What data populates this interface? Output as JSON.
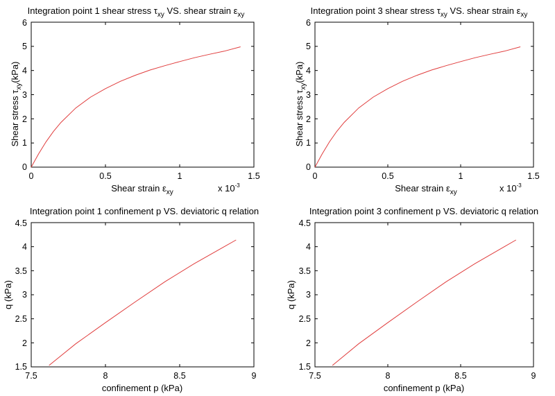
{
  "chart_data": [
    {
      "type": "line",
      "title": "Integration point 1 shear stress τxy VS. shear strain εxy",
      "title_parts": {
        "pre": "Integration point 1 shear stress ",
        "sym1": "τ",
        "sub1": "xy",
        "mid": " VS. shear strain ",
        "sym2": "ε",
        "sub2": "xy"
      },
      "xlabel": "Shear strain εxy",
      "xlabel_parts": {
        "pre": "Shear strain ",
        "sym": "ε",
        "sub": "xy"
      },
      "ylabel": "Shear stress τxy (kPa)",
      "ylabel_parts": {
        "pre": "Shear stress ",
        "sym": "τ",
        "sub": "xy",
        "post": "(kPa)"
      },
      "x_exponent_label": {
        "base": "x 10",
        "exp": "-3"
      },
      "xlim": [
        0,
        1.5
      ],
      "ylim": [
        0,
        6
      ],
      "xticks": [
        "0",
        "0.5",
        "1",
        "1.5"
      ],
      "xtick_values": [
        0,
        0.5,
        1,
        1.5
      ],
      "yticks": [
        "0",
        "1",
        "2",
        "3",
        "4",
        "5",
        "6"
      ],
      "ytick_values": [
        0,
        1,
        2,
        3,
        4,
        5,
        6
      ],
      "grid": false,
      "line_color": "#e03c3c",
      "series": [
        {
          "x": [
            0,
            0.05,
            0.1,
            0.15,
            0.2,
            0.3,
            0.4,
            0.5,
            0.6,
            0.7,
            0.8,
            0.9,
            1.0,
            1.1,
            1.2,
            1.3,
            1.41
          ],
          "y": [
            0,
            0.55,
            1.05,
            1.48,
            1.85,
            2.45,
            2.9,
            3.25,
            3.55,
            3.8,
            4.02,
            4.2,
            4.37,
            4.53,
            4.67,
            4.8,
            4.98
          ]
        }
      ]
    },
    {
      "type": "line",
      "title": "Integration point 3 shear stress τxy VS. shear strain εxy",
      "title_parts": {
        "pre": "Integration point 3 shear stress ",
        "sym1": "τ",
        "sub1": "xy",
        "mid": " VS. shear strain ",
        "sym2": "ε",
        "sub2": "xy"
      },
      "xlabel": "Shear strain εxy",
      "xlabel_parts": {
        "pre": "Shear strain ",
        "sym": "ε",
        "sub": "xy"
      },
      "ylabel": "Shear stress τxy (kPa)",
      "ylabel_parts": {
        "pre": "Shear stress ",
        "sym": "τ",
        "sub": "xy",
        "post": "(kPa)"
      },
      "x_exponent_label": {
        "base": "x 10",
        "exp": "-3"
      },
      "xlim": [
        0,
        1.5
      ],
      "ylim": [
        0,
        6
      ],
      "xticks": [
        "0",
        "0.5",
        "1",
        "1.5"
      ],
      "xtick_values": [
        0,
        0.5,
        1,
        1.5
      ],
      "yticks": [
        "0",
        "1",
        "2",
        "3",
        "4",
        "5",
        "6"
      ],
      "ytick_values": [
        0,
        1,
        2,
        3,
        4,
        5,
        6
      ],
      "grid": false,
      "line_color": "#e03c3c",
      "series": [
        {
          "x": [
            0,
            0.05,
            0.1,
            0.15,
            0.2,
            0.3,
            0.4,
            0.5,
            0.6,
            0.7,
            0.8,
            0.9,
            1.0,
            1.1,
            1.2,
            1.3,
            1.41
          ],
          "y": [
            0,
            0.55,
            1.05,
            1.48,
            1.85,
            2.45,
            2.9,
            3.25,
            3.55,
            3.8,
            4.02,
            4.2,
            4.37,
            4.53,
            4.67,
            4.8,
            4.98
          ]
        }
      ]
    },
    {
      "type": "line",
      "title": "Integration point 1 confinement p VS. deviatoric q relation",
      "xlabel": "confinement p (kPa)",
      "ylabel": "q (kPa)",
      "xlim": [
        7.5,
        9
      ],
      "ylim": [
        1.5,
        4.5
      ],
      "xticks": [
        "7.5",
        "8",
        "8.5",
        "9"
      ],
      "xtick_values": [
        7.5,
        8,
        8.5,
        9
      ],
      "yticks": [
        "1.5",
        "2",
        "2.5",
        "3",
        "3.5",
        "4",
        "4.5"
      ],
      "ytick_values": [
        1.5,
        2,
        2.5,
        3,
        3.5,
        4,
        4.5
      ],
      "grid": false,
      "line_color": "#e03c3c",
      "series": [
        {
          "x": [
            7.62,
            7.8,
            8.0,
            8.2,
            8.4,
            8.6,
            8.8,
            8.88
          ],
          "y": [
            1.53,
            1.98,
            2.42,
            2.85,
            3.27,
            3.65,
            4.0,
            4.14
          ]
        }
      ]
    },
    {
      "type": "line",
      "title": "Integration point 3 confinement p VS. deviatoric q relation",
      "xlabel": "confinement p (kPa)",
      "ylabel": "q (kPa)",
      "xlim": [
        7.5,
        9
      ],
      "ylim": [
        1.5,
        4.5
      ],
      "xticks": [
        "7.5",
        "8",
        "8.5",
        "9"
      ],
      "xtick_values": [
        7.5,
        8,
        8.5,
        9
      ],
      "yticks": [
        "1.5",
        "2",
        "2.5",
        "3",
        "3.5",
        "4",
        "4.5"
      ],
      "ytick_values": [
        1.5,
        2,
        2.5,
        3,
        3.5,
        4,
        4.5
      ],
      "grid": false,
      "line_color": "#e03c3c",
      "series": [
        {
          "x": [
            7.62,
            7.8,
            8.0,
            8.2,
            8.4,
            8.6,
            8.8,
            8.88
          ],
          "y": [
            1.53,
            1.98,
            2.42,
            2.85,
            3.27,
            3.65,
            4.0,
            4.14
          ]
        }
      ]
    }
  ]
}
